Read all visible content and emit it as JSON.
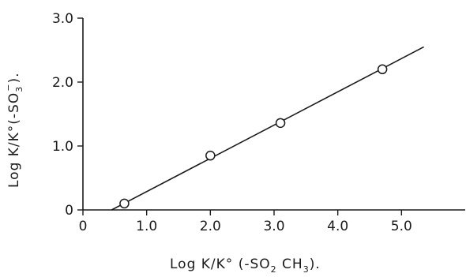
{
  "chart_data": {
    "type": "scatter",
    "title": "",
    "xlabel": {
      "before": "Log K/K° (-SO",
      "sub1": "2",
      "mid": " CH",
      "sub2": "3",
      "after": ")."
    },
    "ylabel": {
      "before": "Log K/K°(-SO",
      "sub": "3",
      "sup": "−",
      "after": ")."
    },
    "xlim": [
      0,
      6.0
    ],
    "ylim": [
      0,
      3.0
    ],
    "x_ticks": [
      {
        "value": 0,
        "label": "0"
      },
      {
        "value": 1.0,
        "label": "1.0"
      },
      {
        "value": 2.0,
        "label": "2.0"
      },
      {
        "value": 3.0,
        "label": "3.0"
      },
      {
        "value": 4.0,
        "label": "4.0"
      },
      {
        "value": 5.0,
        "label": "5.0"
      }
    ],
    "y_ticks": [
      {
        "value": 0,
        "label": "0"
      },
      {
        "value": 1.0,
        "label": "1.0"
      },
      {
        "value": 2.0,
        "label": "2.0"
      },
      {
        "value": 3.0,
        "label": "3.0"
      }
    ],
    "points": [
      {
        "x": 0.65,
        "y": 0.1
      },
      {
        "x": 2.0,
        "y": 0.85
      },
      {
        "x": 3.1,
        "y": 1.36
      },
      {
        "x": 4.7,
        "y": 2.2
      }
    ],
    "fit_line": {
      "x1": 0.45,
      "y1": 0.0,
      "x2": 5.35,
      "y2": 2.55
    },
    "grid": false,
    "marker": "open-circle",
    "colors": {
      "ink": "#1a1a1a",
      "background": "#ffffff"
    }
  }
}
